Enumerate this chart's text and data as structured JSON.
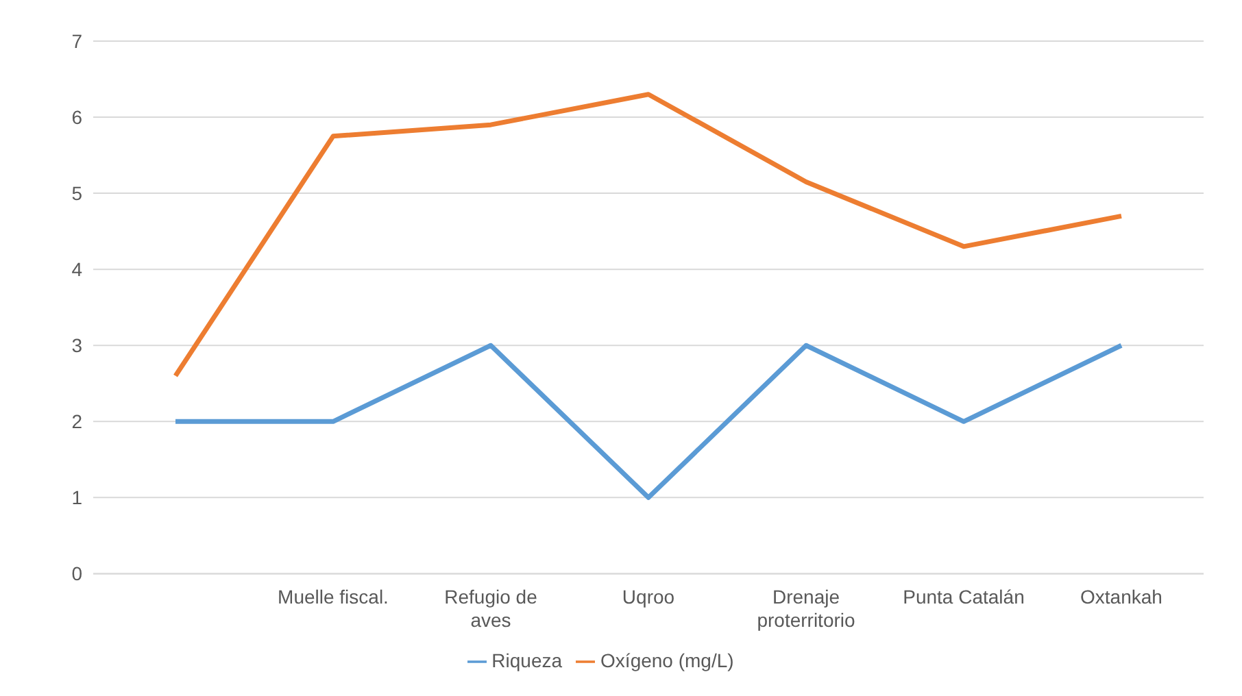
{
  "chart_data": {
    "type": "line",
    "categories": [
      null,
      "Muelle fiscal.",
      "Refugio de aves",
      "Uqroo",
      "Drenaje proterritorio",
      "Punta Catalán",
      "Oxtankah"
    ],
    "series": [
      {
        "name": "Riqueza",
        "color": "#5b9bd5",
        "values": [
          2,
          2,
          3,
          1,
          3,
          2,
          3
        ]
      },
      {
        "name": "Oxígeno (mg/L)",
        "color": "#ed7d31",
        "values": [
          2.6,
          5.75,
          5.9,
          6.3,
          5.15,
          4.3,
          4.7
        ]
      }
    ],
    "ylim": [
      0,
      7
    ],
    "yticks": [
      0,
      1,
      2,
      3,
      4,
      5,
      6,
      7
    ],
    "grid": "y",
    "legend": "bottom",
    "marker": "none",
    "line_style": "solid"
  }
}
